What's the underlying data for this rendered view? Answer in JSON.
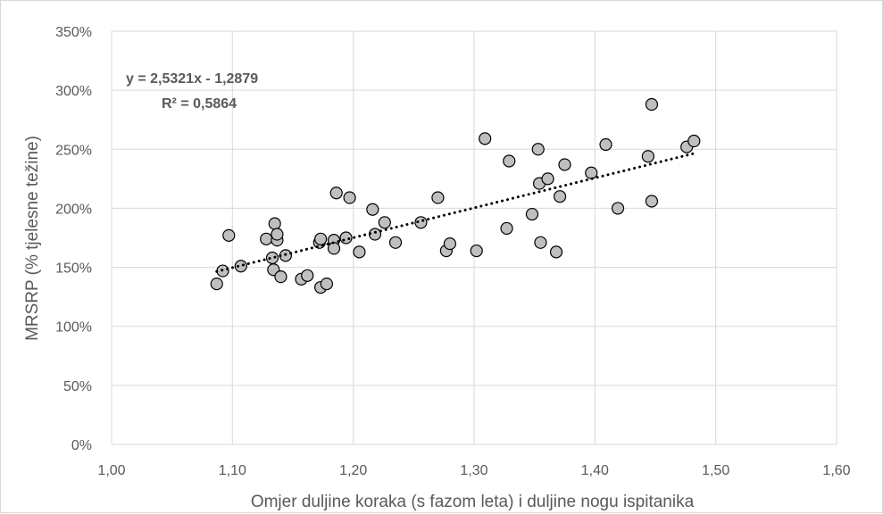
{
  "chart_data": {
    "type": "scatter",
    "title": "",
    "xlabel": "Omjer duljine koraka (s fazom leta) i duljine nogu ispitanika",
    "ylabel": "MRSRP (% tjelesne težine)",
    "xlim": [
      1.0,
      1.6
    ],
    "ylim": [
      0,
      3.5
    ],
    "x_ticks": [
      "1,00",
      "1,10",
      "1,20",
      "1,30",
      "1,40",
      "1,50",
      "1,60"
    ],
    "y_ticks": [
      "0%",
      "50%",
      "100%",
      "150%",
      "200%",
      "250%",
      "300%",
      "350%"
    ],
    "grid": true,
    "legend": "none",
    "colors": {
      "marker_fill": "#bfbfbf",
      "marker_edge": "#000000",
      "grid": "#d9d9d9",
      "text": "#595959",
      "trendline": "#000000"
    },
    "trendline": {
      "type": "linear",
      "slope": 2.5321,
      "intercept": -1.2879,
      "equation": "y = 2,5321x - 1,2879",
      "r2": "R² = 0,5864"
    },
    "points": [
      [
        1.087,
        1.36
      ],
      [
        1.092,
        1.47
      ],
      [
        1.097,
        1.77
      ],
      [
        1.107,
        1.51
      ],
      [
        1.128,
        1.74
      ],
      [
        1.133,
        1.58
      ],
      [
        1.134,
        1.48
      ],
      [
        1.135,
        1.87
      ],
      [
        1.137,
        1.73
      ],
      [
        1.137,
        1.78
      ],
      [
        1.14,
        1.42
      ],
      [
        1.144,
        1.6
      ],
      [
        1.157,
        1.4
      ],
      [
        1.162,
        1.43
      ],
      [
        1.172,
        1.71
      ],
      [
        1.173,
        1.74
      ],
      [
        1.173,
        1.33
      ],
      [
        1.178,
        1.36
      ],
      [
        1.184,
        1.73
      ],
      [
        1.184,
        1.66
      ],
      [
        1.186,
        2.13
      ],
      [
        1.194,
        1.75
      ],
      [
        1.197,
        2.09
      ],
      [
        1.205,
        1.63
      ],
      [
        1.216,
        1.99
      ],
      [
        1.218,
        1.78
      ],
      [
        1.226,
        1.88
      ],
      [
        1.235,
        1.71
      ],
      [
        1.256,
        1.88
      ],
      [
        1.27,
        2.09
      ],
      [
        1.277,
        1.64
      ],
      [
        1.28,
        1.7
      ],
      [
        1.302,
        1.64
      ],
      [
        1.309,
        2.59
      ],
      [
        1.327,
        1.83
      ],
      [
        1.329,
        2.4
      ],
      [
        1.348,
        1.95
      ],
      [
        1.353,
        2.5
      ],
      [
        1.354,
        2.21
      ],
      [
        1.355,
        1.71
      ],
      [
        1.361,
        2.25
      ],
      [
        1.368,
        1.63
      ],
      [
        1.371,
        2.1
      ],
      [
        1.375,
        2.37
      ],
      [
        1.397,
        2.3
      ],
      [
        1.409,
        2.54
      ],
      [
        1.419,
        2.0
      ],
      [
        1.444,
        2.44
      ],
      [
        1.447,
        2.88
      ],
      [
        1.447,
        2.06
      ],
      [
        1.476,
        2.52
      ],
      [
        1.482,
        2.57
      ]
    ]
  }
}
